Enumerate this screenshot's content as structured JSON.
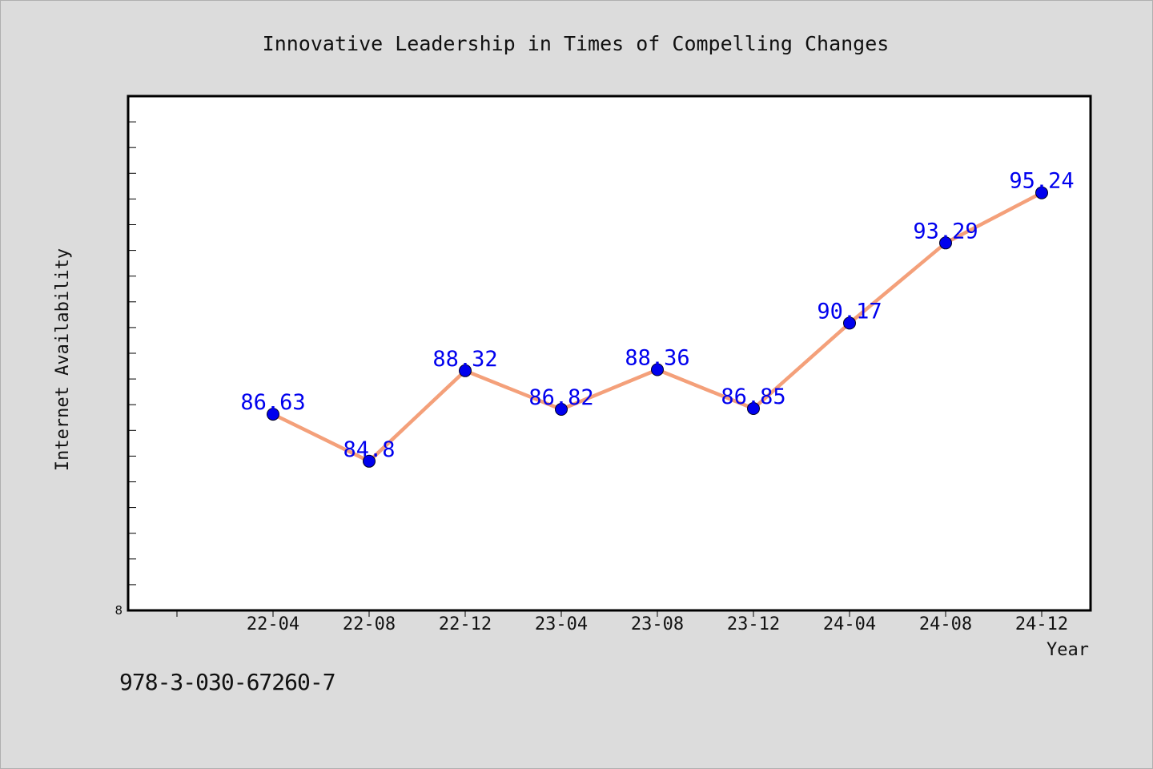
{
  "chart_data": {
    "type": "line",
    "title": "Innovative Leadership in Times of Compelling Changes",
    "xlabel": "Year",
    "ylabel": "Internet Availability",
    "categories": [
      "22-04",
      "22-08",
      "22-12",
      "23-04",
      "23-08",
      "23-12",
      "24-04",
      "24-08",
      "24-12"
    ],
    "values": [
      86.63,
      84.8,
      88.32,
      86.82,
      88.36,
      86.85,
      90.17,
      93.29,
      95.24
    ],
    "data_labels": [
      "86.63",
      "84.8",
      "88.32",
      "86.82",
      "88.36",
      "86.85",
      "90.17",
      "93.29",
      "95.24"
    ],
    "y_tick_label": "8",
    "ylim": [
      79,
      99
    ],
    "grid": false,
    "line_color": "#f4a07a",
    "marker_color": "#0000ee",
    "label_color": "#0000ee"
  },
  "footer": {
    "code": "978-3-030-67260-7"
  }
}
